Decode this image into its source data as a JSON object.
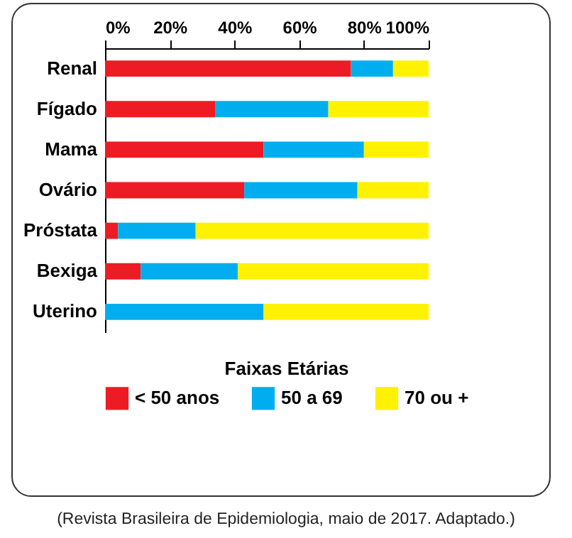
{
  "chart_data": {
    "type": "bar",
    "orientation": "horizontal",
    "stacked": true,
    "legend_title": "Faixas Etárias",
    "legend": "bottom",
    "categories": [
      "Renal",
      "Fígado",
      "Mama",
      "Ovário",
      "Próstata",
      "Bexiga",
      "Uterino"
    ],
    "series": [
      {
        "name": "< 50 anos",
        "color": "#ed1c24",
        "values": [
          76,
          34,
          49,
          43,
          4,
          11,
          0
        ]
      },
      {
        "name": "50 a 69",
        "color": "#00aeef",
        "values": [
          13,
          35,
          31,
          35,
          24,
          30,
          49
        ]
      },
      {
        "name": "70 ou +",
        "color": "#fff200",
        "values": [
          11,
          31,
          20,
          22,
          72,
          59,
          51
        ]
      }
    ],
    "xlim": [
      0,
      100
    ],
    "xticks": [
      {
        "value": 0,
        "label": "0%"
      },
      {
        "value": 20,
        "label": "20%"
      },
      {
        "value": 40,
        "label": "40%"
      },
      {
        "value": 60,
        "label": "60%"
      },
      {
        "value": 80,
        "label": "80%"
      },
      {
        "value": 100,
        "label": "100%"
      }
    ],
    "grid": false,
    "annotations": [
      "(Revista Brasileira de Epidemiologia, maio de 2017. Adaptado.)"
    ]
  }
}
